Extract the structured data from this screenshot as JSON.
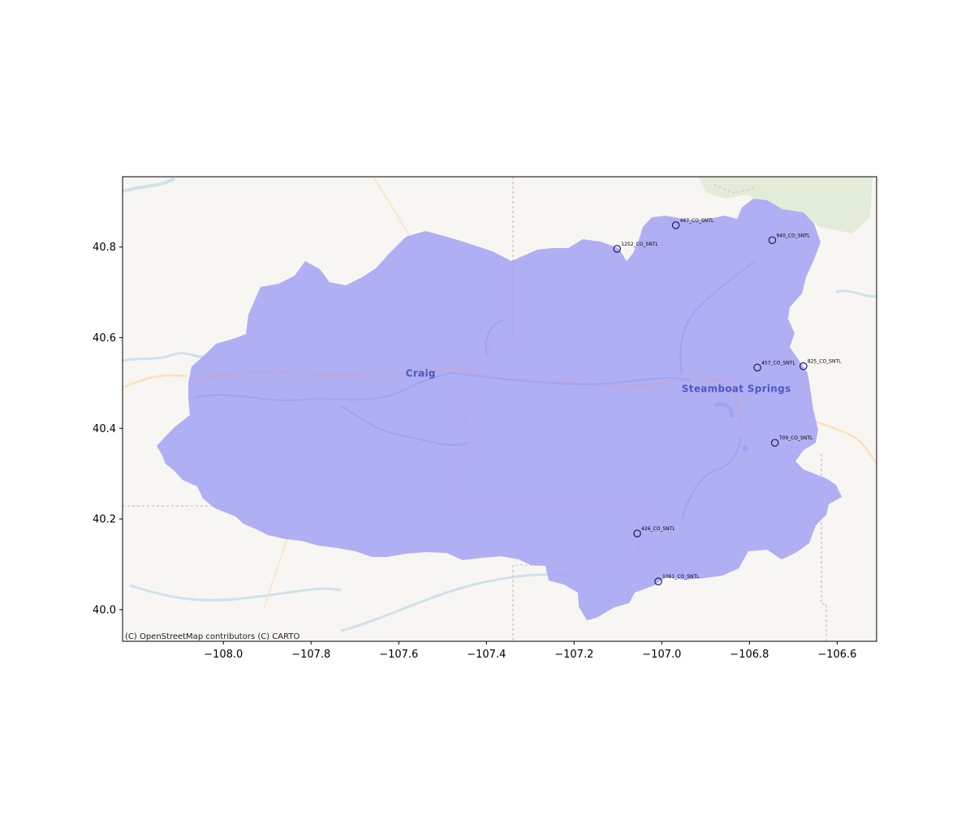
{
  "map": {
    "attribution": "(C) OpenStreetMap contributors (C) CARTO",
    "xlim": [
      -108.23,
      -106.51
    ],
    "ylim": [
      39.93,
      40.955
    ],
    "x_ticks": [
      {
        "value": -108.0,
        "label": "−108.0"
      },
      {
        "value": -107.8,
        "label": "−107.8"
      },
      {
        "value": -107.6,
        "label": "−107.6"
      },
      {
        "value": -107.4,
        "label": "−107.4"
      },
      {
        "value": -107.2,
        "label": "−107.2"
      },
      {
        "value": -107.0,
        "label": "−107.0"
      },
      {
        "value": -106.8,
        "label": "−106.8"
      },
      {
        "value": -106.6,
        "label": "−106.6"
      }
    ],
    "y_ticks": [
      {
        "value": 40.0,
        "label": "40.0"
      },
      {
        "value": 40.2,
        "label": "40.2"
      },
      {
        "value": 40.4,
        "label": "40.4"
      },
      {
        "value": 40.6,
        "label": "40.6"
      },
      {
        "value": 40.8,
        "label": "40.8"
      }
    ],
    "towns": [
      {
        "name": "Craig",
        "lon": -107.55,
        "lat": 40.514
      },
      {
        "name": "Steamboat Springs",
        "lon": -106.83,
        "lat": 40.48
      }
    ],
    "colors": {
      "basin_fill": "#a5a5f4",
      "basin_opacity": 0.88,
      "land": "#f8f6f2",
      "marker_edge": "#1a1a5e",
      "water": "#b9d6e6"
    }
  },
  "chart_data": {
    "type": "scatter",
    "xlabel": "",
    "ylabel": "",
    "xlim": [
      -108.23,
      -106.51
    ],
    "ylim": [
      39.93,
      40.955
    ],
    "points": [
      {
        "label": "467_CO_SNTL",
        "x": -106.968,
        "y": 40.848
      },
      {
        "label": "1252_CO_SNTL",
        "x": -107.102,
        "y": 40.796
      },
      {
        "label": "940_CO_SNTL",
        "x": -106.748,
        "y": 40.815
      },
      {
        "label": "457_CO_SNTL",
        "x": -106.782,
        "y": 40.534
      },
      {
        "label": "825_CO_SNTL",
        "x": -106.677,
        "y": 40.537
      },
      {
        "label": "709_CO_SNTL",
        "x": -106.742,
        "y": 40.368
      },
      {
        "label": "426_CO_SNTL",
        "x": -107.056,
        "y": 40.168
      },
      {
        "label": "1061_CO_SNTL",
        "x": -107.008,
        "y": 40.062
      }
    ]
  }
}
